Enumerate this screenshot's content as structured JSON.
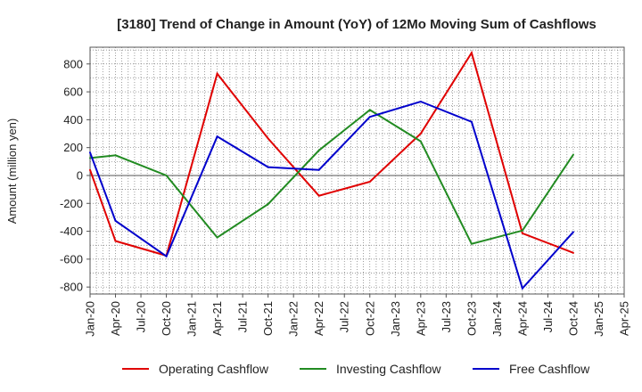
{
  "chart_data": {
    "type": "line",
    "title": "[3180]  Trend of Change in Amount (YoY) of 12Mo Moving Sum of Cashflows",
    "xlabel": "",
    "ylabel": "Amount (million yen)",
    "ylim": [
      -850,
      920
    ],
    "yticks": [
      -800,
      -600,
      -400,
      -200,
      0,
      200,
      400,
      600,
      800
    ],
    "categories": [
      "Jan-20",
      "Apr-20",
      "Jul-20",
      "Oct-20",
      "Jan-21",
      "Apr-21",
      "Jul-21",
      "Oct-21",
      "Jan-22",
      "Apr-22",
      "Jul-22",
      "Oct-22",
      "Jan-23",
      "Apr-23",
      "Jul-23",
      "Oct-23",
      "Jan-24",
      "Apr-24",
      "Jul-24",
      "Oct-24",
      "Jan-25",
      "Apr-25"
    ],
    "series": [
      {
        "name": "Operating Cashflow",
        "color": "#e00000",
        "values": [
          40,
          -470,
          null,
          -575,
          null,
          730,
          null,
          265,
          null,
          -145,
          null,
          -45,
          null,
          300,
          null,
          880,
          null,
          -415,
          null,
          -555,
          null,
          null
        ]
      },
      {
        "name": "Investing Cashflow",
        "color": "#228b22",
        "values": [
          125,
          145,
          null,
          0,
          null,
          -445,
          null,
          -205,
          null,
          180,
          null,
          470,
          null,
          245,
          null,
          -490,
          null,
          -395,
          null,
          150,
          null,
          null
        ]
      },
      {
        "name": "Free Cashflow",
        "color": "#0000cc",
        "values": [
          165,
          -325,
          null,
          -580,
          null,
          280,
          null,
          60,
          null,
          40,
          null,
          420,
          null,
          530,
          null,
          385,
          null,
          -810,
          null,
          -405,
          null,
          null
        ]
      }
    ],
    "grid": true,
    "legend": "bottom"
  }
}
